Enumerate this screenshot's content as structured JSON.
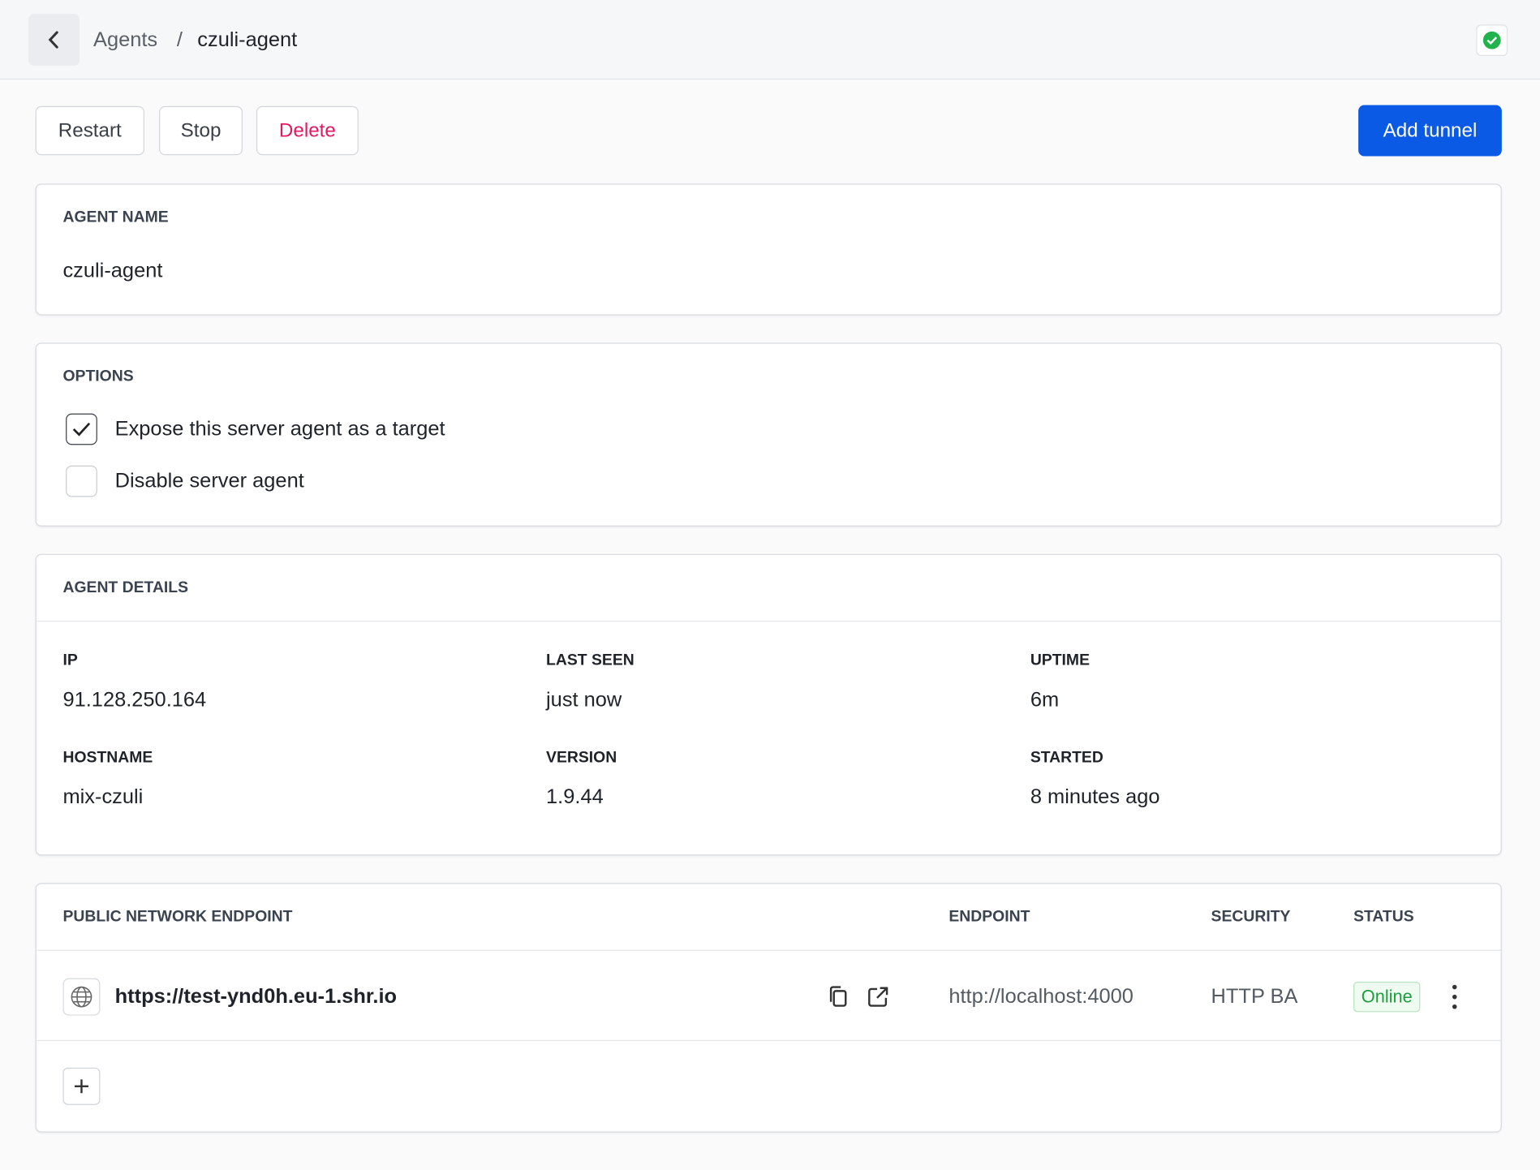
{
  "header": {
    "breadcrumb": [
      "Agents",
      "/",
      "czuli-agent"
    ]
  },
  "actions": {
    "restart": "Restart",
    "stop": "Stop",
    "delete": "Delete",
    "add_tunnel": "Add tunnel"
  },
  "agent_name": {
    "label": "AGENT NAME",
    "value": "czuli-agent"
  },
  "options": {
    "title": "OPTIONS",
    "items": [
      {
        "label": "Expose this server agent as a target",
        "checked": true
      },
      {
        "label": "Disable server agent",
        "checked": false
      }
    ]
  },
  "details": {
    "title": "AGENT DETAILS",
    "fields": [
      {
        "label": "IP",
        "value": "91.128.250.164"
      },
      {
        "label": "LAST SEEN",
        "value": "just now"
      },
      {
        "label": "UPTIME",
        "value": "6m"
      },
      {
        "label": "HOSTNAME",
        "value": "mix-czuli"
      },
      {
        "label": "VERSION",
        "value": "1.9.44"
      },
      {
        "label": "STARTED",
        "value": "8 minutes ago"
      }
    ]
  },
  "endpoints": {
    "headers": [
      "PUBLIC NETWORK ENDPOINT",
      "ENDPOINT",
      "SECURITY",
      "STATUS"
    ],
    "rows": [
      {
        "url": "https://test-ynd0h.eu-1.shr.io",
        "endpoint": "http://localhost:4000",
        "security": "HTTP BA",
        "status": "Online"
      }
    ]
  }
}
